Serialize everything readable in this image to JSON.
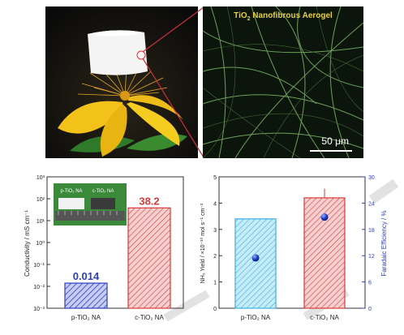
{
  "sem": {
    "title_main": "TiO",
    "title_sub": "2",
    "title_rest": " Nanofibrous Aerogel",
    "scale_label": "50 μm"
  },
  "colors": {
    "blue": "#2c3fc0",
    "red": "#d83a3a",
    "cyan": "#3ab0e0",
    "flower": "#f2c21a",
    "fiber": "#7fb86a"
  },
  "chart_data": [
    {
      "type": "bar",
      "yscale": "log",
      "categories": [
        "p-TiO₂ NA",
        "c-TiO₂ NA"
      ],
      "values": [
        0.014,
        38.2
      ],
      "value_labels": [
        "0.014",
        "38.2"
      ],
      "ylabel": "Conductivity / mS cm⁻¹",
      "ylim": [
        0.001,
        1000
      ],
      "yticks": [
        "10⁻³",
        "10⁻²",
        "10⁻¹",
        "10⁰",
        "10¹",
        "10²",
        "10³"
      ],
      "inset_labels": [
        "p-TiO₂ NA",
        "c-TiO₂ NA"
      ]
    },
    {
      "type": "bar",
      "categories": [
        "p-TiO₂ NA",
        "c-TiO₂ NA"
      ],
      "values": [
        3.4,
        4.2
      ],
      "errors": [
        0,
        0.35
      ],
      "ylabel": "NH₃ Yield / ×10⁻¹⁰ mol s⁻¹ cm⁻²",
      "ylim": [
        0,
        5
      ],
      "yticks": [
        "0",
        "1",
        "2",
        "3",
        "4",
        "5"
      ],
      "y2": {
        "label": "Faradaic Efficiency / %",
        "values": [
          11.5,
          20.8
        ],
        "ylim": [
          0,
          30
        ],
        "yticks": [
          "0",
          "6",
          "12",
          "18",
          "24",
          "30"
        ]
      }
    }
  ]
}
